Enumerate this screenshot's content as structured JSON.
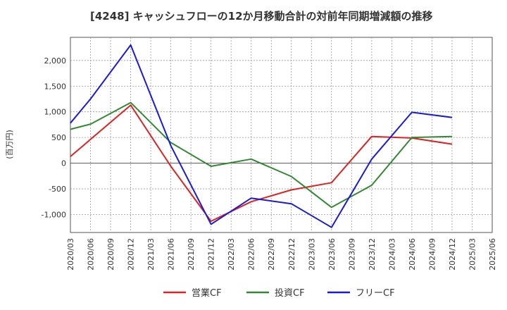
{
  "chart_data": {
    "type": "line",
    "title": "[4248]  キャッシュフローの12か月移動合計の対前年同期増減額の推移",
    "ylabel": "(百万円)",
    "xlabel": "",
    "ylim": [
      -1350,
      2450
    ],
    "yticks": [
      -1000,
      -500,
      0,
      500,
      1000,
      1500,
      2000
    ],
    "ytick_labels": [
      "-1,000",
      "-500",
      "0",
      "500",
      "1,000",
      "1,500",
      "2,000"
    ],
    "x": [
      "2020/03",
      "2020/06",
      "2020/09",
      "2020/12",
      "2021/03",
      "2021/06",
      "2021/09",
      "2021/12",
      "2022/03",
      "2022/06",
      "2022/09",
      "2022/12",
      "2023/03",
      "2023/06",
      "2023/09",
      "2023/12",
      "2024/03",
      "2024/06",
      "2024/09",
      "2024/12",
      "2025/03",
      "2025/06"
    ],
    "grid": true,
    "legend_position": "bottom",
    "series": [
      {
        "name": "営業CF",
        "color": "#dd2222",
        "values": [
          130,
          null,
          null,
          1130,
          null,
          -60,
          null,
          -1130,
          null,
          -750,
          null,
          -520,
          null,
          -380,
          null,
          520,
          null,
          490,
          null,
          370,
          null,
          null
        ]
      },
      {
        "name": "投資CF",
        "color": "#338833",
        "values": [
          660,
          760,
          null,
          1180,
          null,
          400,
          null,
          -60,
          null,
          80,
          null,
          -260,
          null,
          -860,
          null,
          -430,
          null,
          500,
          null,
          520,
          null,
          null
        ]
      },
      {
        "name": "フリーCF",
        "color": "#1a1adb",
        "values": [
          780,
          1250,
          null,
          2300,
          null,
          340,
          null,
          -1190,
          null,
          -680,
          null,
          -790,
          null,
          -1250,
          null,
          80,
          null,
          990,
          null,
          890,
          null,
          null
        ]
      }
    ]
  }
}
